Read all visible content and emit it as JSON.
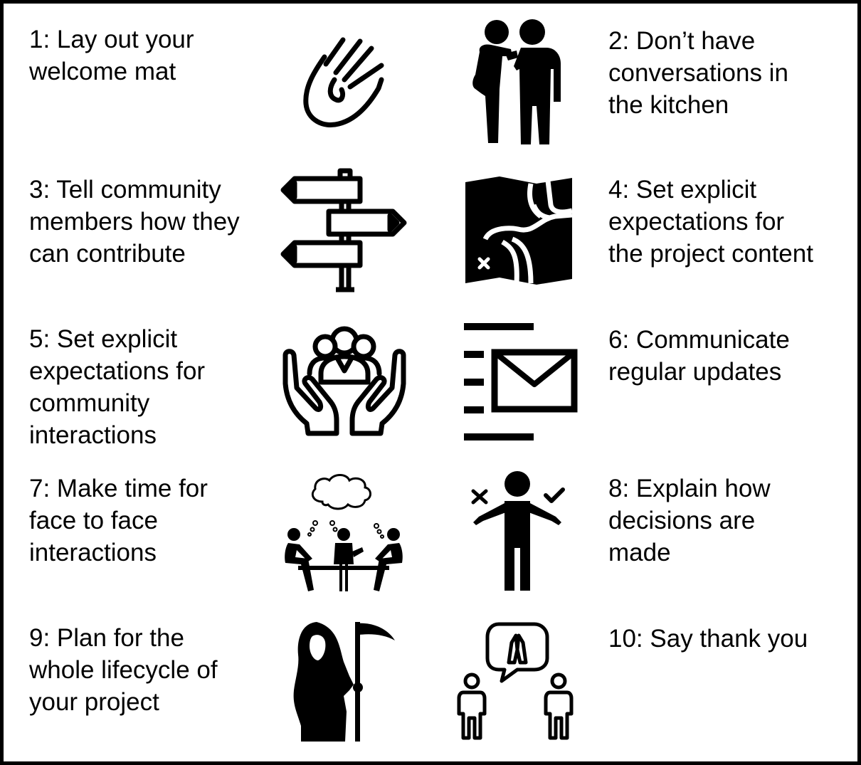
{
  "tips": [
    {
      "lines": [
        "1: Lay out your",
        "welcome mat"
      ],
      "icon": "waving-hand-icon"
    },
    {
      "lines": [
        "2: Don’t have",
        "conversations in",
        "the kitchen"
      ],
      "icon": "whispering-people-icon"
    },
    {
      "lines": [
        "3: Tell community",
        "members how they",
        "can contribute"
      ],
      "icon": "signpost-icon"
    },
    {
      "lines": [
        "4: Set explicit",
        "expectations for",
        "the project content"
      ],
      "icon": "folded-map-icon"
    },
    {
      "lines": [
        "5: Set explicit",
        "expectations for",
        "community",
        "interactions"
      ],
      "icon": "hands-holding-group-icon"
    },
    {
      "lines": [
        "6: Communicate",
        "regular updates"
      ],
      "icon": "newsletter-envelope-icon"
    },
    {
      "lines": [
        "7: Make time for",
        "face to face",
        "interactions"
      ],
      "icon": "meeting-table-icon"
    },
    {
      "lines": [
        "8: Explain how",
        "decisions are",
        "made"
      ],
      "icon": "person-deciding-icon"
    },
    {
      "lines": [
        "9: Plan for the",
        "whole lifecycle of",
        "your project"
      ],
      "icon": "grim-reaper-icon"
    },
    {
      "lines": [
        "10: Say thank you"
      ],
      "icon": "thank-you-speech-icon"
    }
  ],
  "colors": {
    "ink": "#000000",
    "background": "#ffffff"
  }
}
